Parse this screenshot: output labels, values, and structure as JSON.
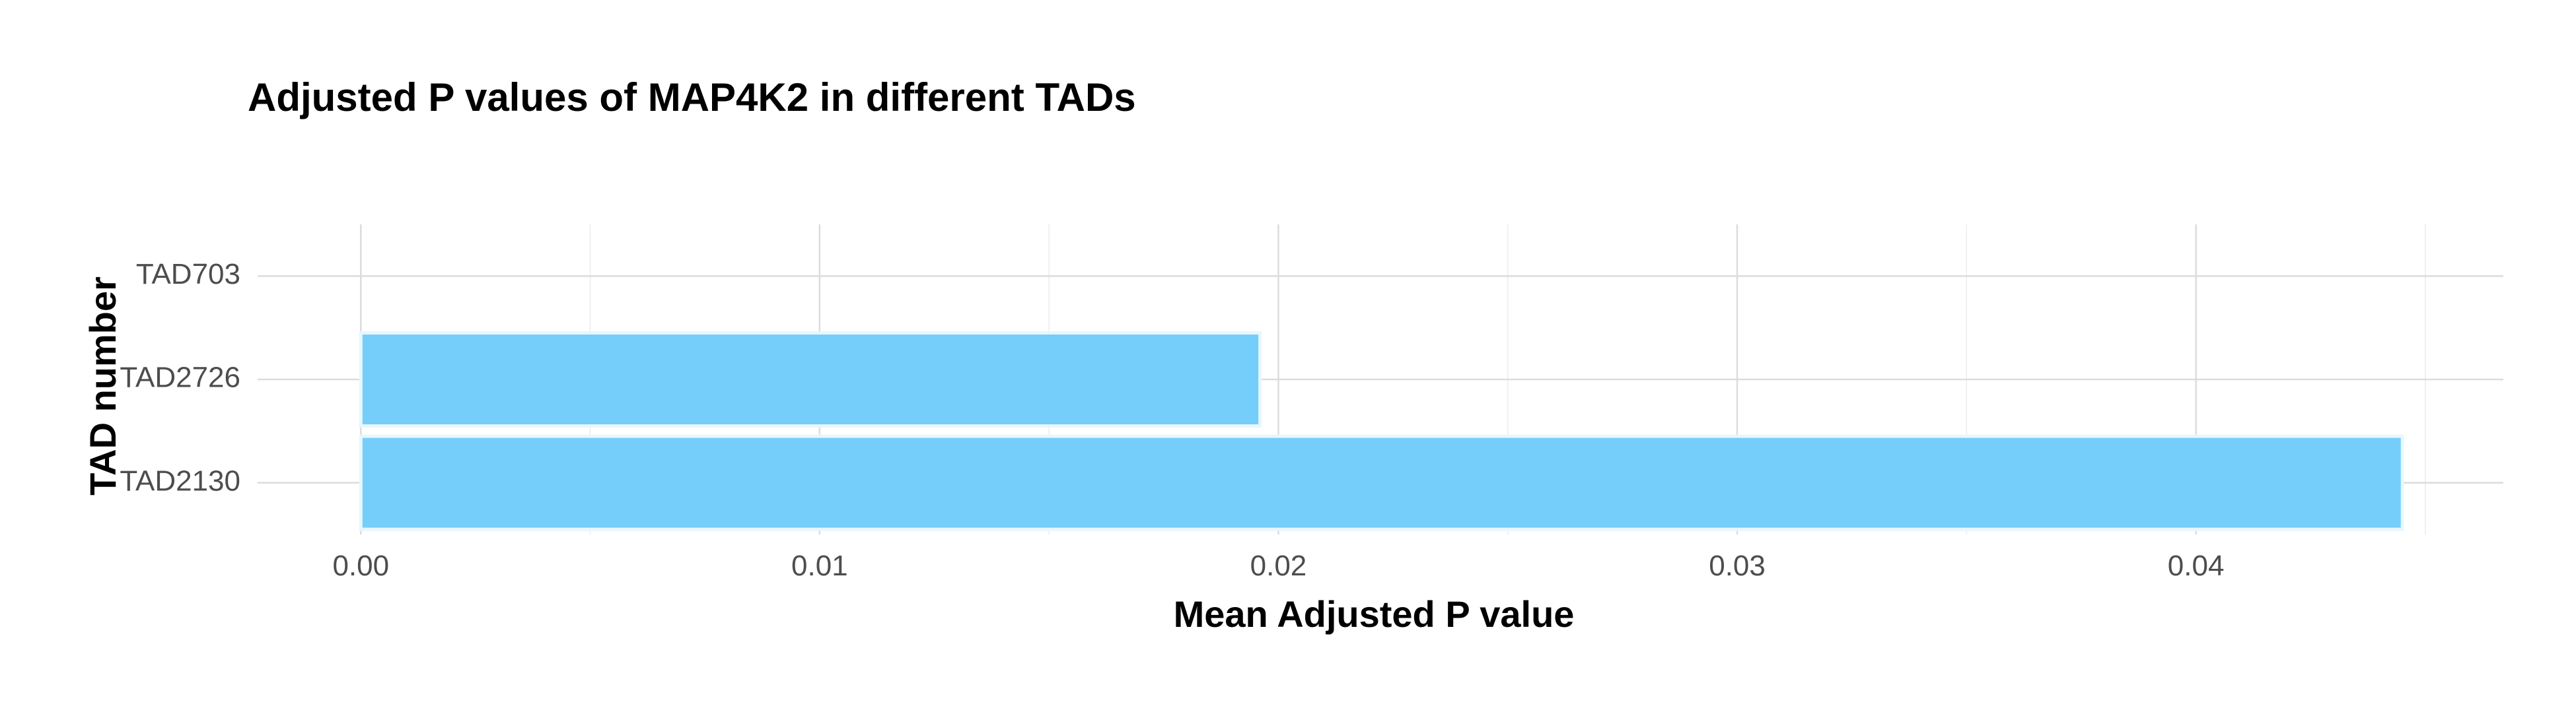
{
  "chart_data": {
    "type": "bar",
    "orientation": "horizontal",
    "title": "Adjusted P values of MAP4K2 in different TADs",
    "xlabel": "Mean Adjusted P value",
    "ylabel": "TAD number",
    "categories": [
      "TAD703",
      "TAD2726",
      "TAD2130"
    ],
    "values": [
      0,
      0.0196,
      0.0445
    ],
    "x_ticks": [
      "0.00",
      "0.01",
      "0.02",
      "0.03",
      "0.04"
    ],
    "x_tick_values": [
      0,
      0.01,
      0.02,
      0.03,
      0.04
    ],
    "xlim": [
      -0.00225,
      0.0467
    ],
    "grid": true,
    "legend": "none",
    "bar_color": "#74CEF9",
    "bar_edge_color": "#E8F6FE"
  }
}
